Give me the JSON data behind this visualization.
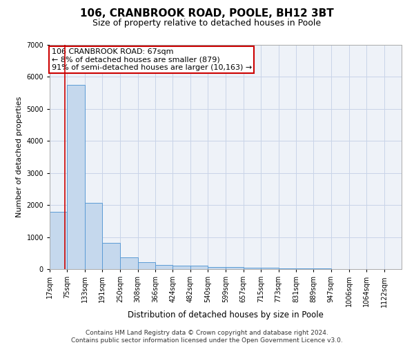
{
  "title": "106, CRANBROOK ROAD, POOLE, BH12 3BT",
  "subtitle": "Size of property relative to detached houses in Poole",
  "xlabel": "Distribution of detached houses by size in Poole",
  "ylabel": "Number of detached properties",
  "footer_line1": "Contains HM Land Registry data © Crown copyright and database right 2024.",
  "footer_line2": "Contains public sector information licensed under the Open Government Licence v3.0.",
  "annotation_line1": "106 CRANBROOK ROAD: 67sqm",
  "annotation_line2": "← 8% of detached houses are smaller (879)",
  "annotation_line3": "91% of semi-detached houses are larger (10,163) →",
  "property_size": 67,
  "bin_edges": [
    17,
    75,
    133,
    191,
    250,
    308,
    366,
    424,
    482,
    540,
    599,
    657,
    715,
    773,
    831,
    889,
    947,
    1006,
    1064,
    1122,
    1180
  ],
  "bar_values": [
    1780,
    5760,
    2060,
    820,
    360,
    210,
    120,
    100,
    100,
    70,
    60,
    50,
    40,
    30,
    20,
    15,
    10,
    8,
    6,
    5
  ],
  "bar_color": "#c5d8ed",
  "bar_edge_color": "#5b9bd5",
  "grid_color": "#c8d4e8",
  "bg_color": "#eef2f8",
  "red_line_color": "#cc0000",
  "annotation_box_color": "#cc0000",
  "ylim": [
    0,
    7000
  ],
  "title_fontsize": 11,
  "subtitle_fontsize": 9,
  "tick_fontsize": 7,
  "ylabel_fontsize": 8,
  "xlabel_fontsize": 8.5,
  "annotation_fontsize": 8,
  "footer_fontsize": 6.5
}
